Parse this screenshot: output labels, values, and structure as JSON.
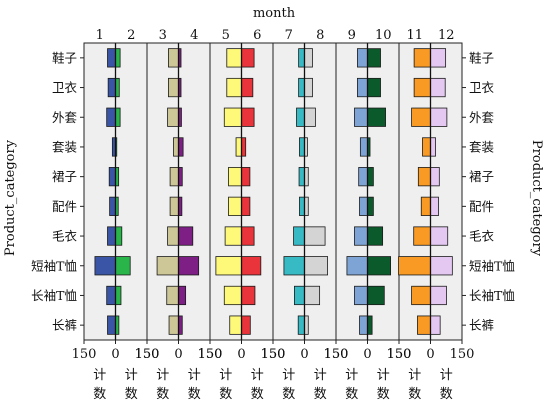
{
  "chart_data": {
    "type": "bar",
    "orientation": "horizontal",
    "layout": "mirrored-pairs",
    "title": "month",
    "ylabel": "Product_category",
    "ylabel_right": "Product_category",
    "xlabel_char_top": "计",
    "xlabel_char_bottom": "数",
    "xlim": [
      -150,
      150
    ],
    "x_tick_labels": [
      "150",
      "0",
      "150"
    ],
    "x_tick_values": [
      -150,
      0,
      150
    ],
    "categories": [
      "鞋子",
      "卫衣",
      "外套",
      "套装",
      "裙子",
      "配件",
      "毛衣",
      "短袖T恤",
      "长袖T恤",
      "长裤"
    ],
    "months": [
      "1",
      "2",
      "3",
      "4",
      "5",
      "6",
      "7",
      "8",
      "9",
      "10",
      "11",
      "12"
    ],
    "series": [
      {
        "name": "1",
        "color": "#3b55a6",
        "values": [
          38,
          35,
          42,
          15,
          30,
          28,
          38,
          98,
          42,
          38
        ]
      },
      {
        "name": "2",
        "color": "#2ab54a",
        "values": [
          22,
          18,
          22,
          6,
          15,
          13,
          30,
          70,
          26,
          16
        ]
      },
      {
        "name": "3",
        "color": "#cdc797",
        "values": [
          48,
          48,
          52,
          24,
          40,
          40,
          52,
          102,
          56,
          45
        ]
      },
      {
        "name": "4",
        "color": "#7e1f86",
        "values": [
          12,
          12,
          14,
          22,
          18,
          16,
          68,
          96,
          34,
          18
        ]
      },
      {
        "name": "5",
        "color": "#fff97a",
        "values": [
          70,
          70,
          82,
          26,
          62,
          62,
          78,
          122,
          82,
          56
        ]
      },
      {
        "name": "6",
        "color": "#e8343a",
        "values": [
          60,
          54,
          60,
          20,
          40,
          40,
          60,
          92,
          64,
          42
        ]
      },
      {
        "name": "7",
        "color": "#38bac4",
        "values": [
          28,
          28,
          38,
          24,
          26,
          24,
          52,
          98,
          48,
          30
        ]
      },
      {
        "name": "8",
        "color": "#d4d4d4",
        "values": [
          38,
          38,
          52,
          14,
          18,
          18,
          98,
          110,
          72,
          18
        ]
      },
      {
        "name": "9",
        "color": "#7ea4d5",
        "values": [
          48,
          48,
          62,
          34,
          42,
          38,
          62,
          98,
          62,
          38
        ]
      },
      {
        "name": "10",
        "color": "#0b5a2b",
        "values": [
          62,
          62,
          86,
          12,
          28,
          28,
          72,
          110,
          80,
          22
        ]
      },
      {
        "name": "11",
        "color": "#f99a24",
        "values": [
          78,
          78,
          90,
          38,
          58,
          44,
          80,
          152,
          90,
          62
        ]
      },
      {
        "name": "12",
        "color": "#e4c8f2",
        "values": [
          72,
          70,
          78,
          24,
          42,
          38,
          82,
          104,
          76,
          46
        ]
      }
    ]
  }
}
